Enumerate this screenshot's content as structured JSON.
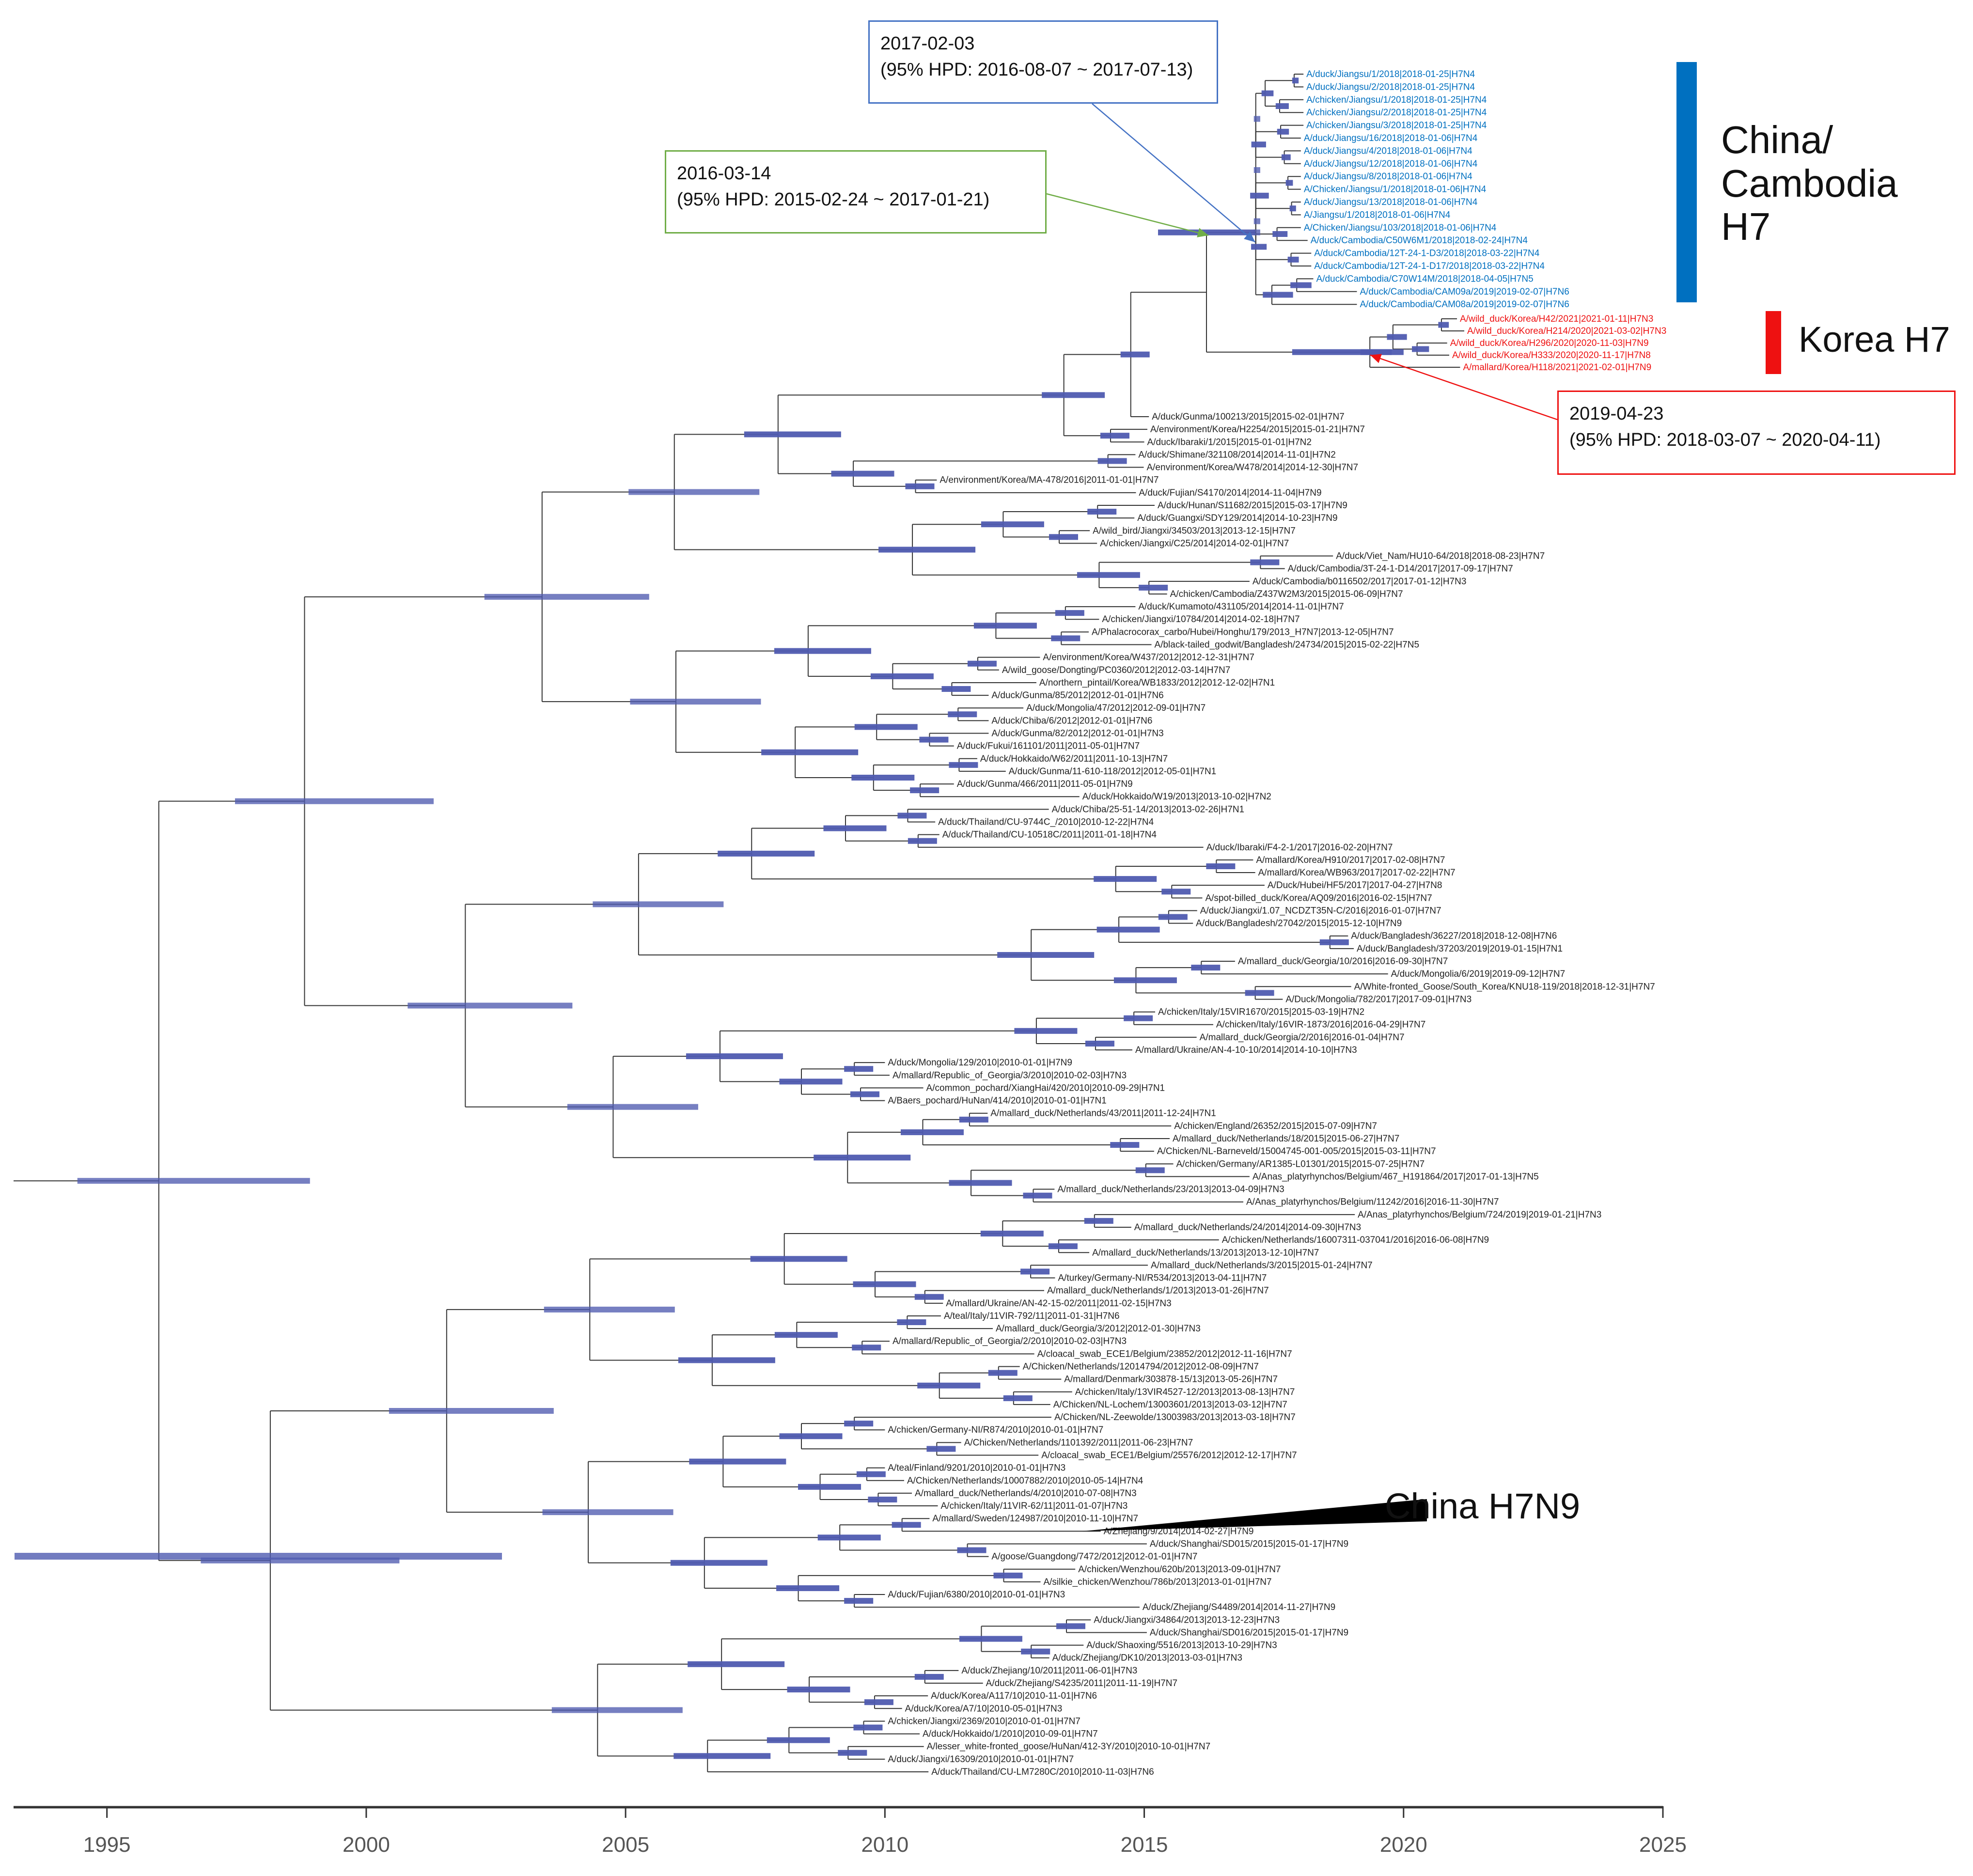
{
  "axis": {
    "ticks": [
      {
        "value": 1995,
        "label": "1995"
      },
      {
        "value": 2000,
        "label": "2000"
      },
      {
        "value": 2005,
        "label": "2005"
      },
      {
        "value": 2010,
        "label": "2010"
      },
      {
        "value": 2015,
        "label": "2015"
      },
      {
        "value": 2020,
        "label": "2020"
      },
      {
        "value": 2025,
        "label": "2025"
      }
    ],
    "range": [
      1993.2,
      2025
    ]
  },
  "colors": {
    "china_cambodia": "#0070C0",
    "korea": "#EE1111",
    "h7n9": "#000000",
    "hpd_bar": "#4F5BB0",
    "branch": "#333333",
    "tip_label": "#222222",
    "callout_blue": "#4472C4",
    "callout_green": "#70AD47",
    "callout_red": "#EE1111"
  },
  "callouts": [
    {
      "id": "blue",
      "date": "2017-02-03",
      "hpd": "(95% HPD: 2016-08-07 ~ 2017-07-13)",
      "node_year": 2017.1
    },
    {
      "id": "green",
      "date": "2016-03-14",
      "hpd": "(95% HPD: 2015-02-24 ~ 2017-01-21)",
      "node_year": 2016.2
    },
    {
      "id": "red",
      "date": "2019-04-23",
      "hpd": "(95% HPD: 2018-03-07 ~ 2020-04-11)",
      "node_year": 2019.3
    }
  ],
  "clade_labels": {
    "china_cambodia": "China/ Cambodia H7",
    "china_cambodia_lines": [
      "China/",
      "Cambodia",
      "H7"
    ],
    "korea": "Korea H7",
    "china_h7n9": "China H7N9"
  },
  "groups": {
    "china_cambodia": [
      {
        "label": "A/duck/Jiangsu/1/2018|2018-01-25|H7N4",
        "year": 2018.07
      },
      {
        "label": "A/duck/Jiangsu/2/2018|2018-01-25|H7N4",
        "year": 2018.07
      },
      {
        "label": "A/chicken/Jiangsu/1/2018|2018-01-25|H7N4",
        "year": 2018.07
      },
      {
        "label": "A/chicken/Jiangsu/2/2018|2018-01-25|H7N4",
        "year": 2018.07
      },
      {
        "label": "A/chicken/Jiangsu/3/2018|2018-01-25|H7N4",
        "year": 2018.07
      },
      {
        "label": "A/duck/Jiangsu/16/2018|2018-01-06|H7N4",
        "year": 2018.02
      },
      {
        "label": "A/duck/Jiangsu/4/2018|2018-01-06|H7N4",
        "year": 2018.02
      },
      {
        "label": "A/duck/Jiangsu/12/2018|2018-01-06|H7N4",
        "year": 2018.02
      },
      {
        "label": "A/duck/Jiangsu/8/2018|2018-01-06|H7N4",
        "year": 2018.02
      },
      {
        "label": "A/Chicken/Jiangsu/1/2018|2018-01-06|H7N4",
        "year": 2018.02
      },
      {
        "label": "A/duck/Jiangsu/13/2018|2018-01-06|H7N4",
        "year": 2018.02
      },
      {
        "label": "A/Jiangsu/1/2018|2018-01-06|H7N4",
        "year": 2018.02
      },
      {
        "label": "A/Chicken/Jiangsu/103/2018|2018-01-06|H7N4",
        "year": 2018.02
      },
      {
        "label": "A/duck/Cambodia/C50W6M1/2018|2018-02-24|H7N4",
        "year": 2018.15
      },
      {
        "label": "A/duck/Cambodia/12T-24-1-D3/2018|2018-03-22|H7N4",
        "year": 2018.22
      },
      {
        "label": "A/duck/Cambodia/12T-24-1-D17/2018|2018-03-22|H7N4",
        "year": 2018.22
      },
      {
        "label": "A/duck/Cambodia/C70W14M/2018|2018-04-05|H7N5",
        "year": 2018.26
      },
      {
        "label": "A/duck/Cambodia/CAM09a/2019|2019-02-07|H7N6",
        "year": 2019.1
      },
      {
        "label": "A/duck/Cambodia/CAM08a/2019|2019-02-07|H7N6",
        "year": 2019.1
      }
    ],
    "korea": [
      {
        "label": "A/wild_duck/Korea/H42/2021|2021-01-11|H7N3",
        "year": 2021.03
      },
      {
        "label": "A/wild_duck/Korea/H214/2020|2021-03-02|H7N3",
        "year": 2021.17
      },
      {
        "label": "A/wild_duck/Korea/H296/2020|2020-11-03|H7N9",
        "year": 2020.84
      },
      {
        "label": "A/wild_duck/Korea/H333/2020|2020-11-17|H7N8",
        "year": 2020.88
      },
      {
        "label": "A/mallard/Korea/H118/2021|2021-02-01|H7N9",
        "year": 2021.09
      }
    ],
    "main": [
      {
        "label": "A/duck/Gunma/100213/2015|2015-02-01|H7N7",
        "year": 2015.09
      },
      {
        "label": "A/environment/Korea/H2254/2015|2015-01-21|H7N7",
        "year": 2015.06
      },
      {
        "label": "A/duck/Ibaraki/1/2015|2015-01-01|H7N2",
        "year": 2015.0
      },
      {
        "label": "A/duck/Shimane/321108/2014|2014-11-01|H7N2",
        "year": 2014.83
      },
      {
        "label": "A/environment/Korea/W478/2014|2014-12-30|H7N7",
        "year": 2014.99
      },
      {
        "label": "A/environment/Korea/MA-478/2016|2011-01-01|H7N7",
        "year": 2011.0
      },
      {
        "label": "A/duck/Fujian/S4170/2014|2014-11-04|H7N9",
        "year": 2014.84
      },
      {
        "label": "A/duck/Hunan/S11682/2015|2015-03-17|H7N9",
        "year": 2015.2
      },
      {
        "label": "A/duck/Guangxi/SDY129/2014|2014-10-23|H7N9",
        "year": 2014.81
      },
      {
        "label": "A/wild_bird/Jiangxi/34503/2013|2013-12-15|H7N7",
        "year": 2013.95
      },
      {
        "label": "A/chicken/Jiangxi/C25/2014|2014-02-01|H7N7",
        "year": 2014.09
      },
      {
        "label": "A/duck/Viet_Nam/HU10-64/2018|2018-08-23|H7N7",
        "year": 2018.64
      },
      {
        "label": "A/duck/Cambodia/3T-24-1-D14/2017|2017-09-17|H7N7",
        "year": 2017.71
      },
      {
        "label": "A/duck/Cambodia/b0116502/2017|2017-01-12|H7N3",
        "year": 2017.03
      },
      {
        "label": "A/chicken/Cambodia/Z437W2M3/2015|2015-06-09|H7N7",
        "year": 2015.44
      },
      {
        "label": "A/duck/Kumamoto/431105/2014|2014-11-01|H7N7",
        "year": 2014.83
      },
      {
        "label": "A/chicken/Jiangxi/10784/2014|2014-02-18|H7N7",
        "year": 2014.13
      },
      {
        "label": "A/Phalacrocorax_carbo/Hubei/Honghu/179/2013_H7N7|2013-12-05|H7N7",
        "year": 2013.93
      },
      {
        "label": "A/black-tailed_godwit/Bangladesh/24734/2015|2015-02-22|H7N5",
        "year": 2015.14
      },
      {
        "label": "A/environment/Korea/W437/2012|2012-12-31|H7N7",
        "year": 2012.99
      },
      {
        "label": "A/wild_goose/Dongting/PC0360/2012|2012-03-14|H7N7",
        "year": 2012.2
      },
      {
        "label": "A/northern_pintail/Korea/WB1833/2012|2012-12-02|H7N1",
        "year": 2012.92
      },
      {
        "label": "A/duck/Gunma/85/2012|2012-01-01|H7N6",
        "year": 2012.0
      },
      {
        "label": "A/duck/Mongolia/47/2012|2012-09-01|H7N7",
        "year": 2012.67
      },
      {
        "label": "A/duck/Chiba/6/2012|2012-01-01|H7N6",
        "year": 2012.0
      },
      {
        "label": "A/duck/Gunma/82/2012|2012-01-01|H7N3",
        "year": 2012.0
      },
      {
        "label": "A/duck/Fukui/161101/2011|2011-05-01|H7N7",
        "year": 2011.33
      },
      {
        "label": "A/duck/Hokkaido/W62/2011|2011-10-13|H7N7",
        "year": 2011.78
      },
      {
        "label": "A/duck/Gunma/11-610-118/2012|2012-05-01|H7N1",
        "year": 2012.33
      },
      {
        "label": "A/duck/Gunma/466/2011|2011-05-01|H7N9",
        "year": 2011.33
      },
      {
        "label": "A/duck/Hokkaido/W19/2013|2013-10-02|H7N2",
        "year": 2013.75
      },
      {
        "label": "A/duck/Chiba/25-51-14/2013|2013-02-26|H7N1",
        "year": 2013.16
      },
      {
        "label": "A/duck/Thailand/CU-9744C_/2010|2010-12-22|H7N4",
        "year": 2010.97
      },
      {
        "label": "A/duck/Thailand/CU-10518C/2011|2011-01-18|H7N4",
        "year": 2011.05
      },
      {
        "label": "A/duck/Ibaraki/F4-2-1/2017|2016-02-20|H7N7",
        "year": 2016.14
      },
      {
        "label": "A/mallard/Korea/H910/2017|2017-02-08|H7N7",
        "year": 2017.1
      },
      {
        "label": "A/mallard/Korea/WB963/2017|2017-02-22|H7N7",
        "year": 2017.14
      },
      {
        "label": "A/Duck/Hubei/HF5/2017|2017-04-27|H7N8",
        "year": 2017.32
      },
      {
        "label": "A/spot-billed_duck/Korea/AQ09/2016|2016-02-15|H7N7",
        "year": 2016.12
      },
      {
        "label": "A/duck/Jiangxi/1.07_NCDZT35N-C/2016|2016-01-07|H7N7",
        "year": 2016.02
      },
      {
        "label": "A/duck/Bangladesh/27042/2015|2015-12-10|H7N9",
        "year": 2015.94
      },
      {
        "label": "A/duck/Bangladesh/36227/2018|2018-12-08|H7N6",
        "year": 2018.93
      },
      {
        "label": "A/duck/Bangladesh/37203/2019|2019-01-15|H7N1",
        "year": 2019.04
      },
      {
        "label": "A/mallard_duck/Georgia/10/2016|2016-09-30|H7N7",
        "year": 2016.75
      },
      {
        "label": "A/duck/Mongolia/6/2019|2019-09-12|H7N7",
        "year": 2019.7
      },
      {
        "label": "A/White-fronted_Goose/South_Korea/KNU18-119/2018|2018-12-31|H7N7",
        "year": 2018.99
      },
      {
        "label": "A/Duck/Mongolia/782/2017|2017-09-01|H7N3",
        "year": 2017.67
      },
      {
        "label": "A/chicken/Italy/15VIR1670/2015|2015-03-19|H7N2",
        "year": 2015.21
      },
      {
        "label": "A/chicken/Italy/16VIR-1873/2016|2016-04-29|H7N7",
        "year": 2016.33
      },
      {
        "label": "A/mallard_duck/Georgia/2/2016|2016-01-04|H7N7",
        "year": 2016.01
      },
      {
        "label": "A/mallard/Ukraine/AN-4-10-10/2014|2014-10-10|H7N3",
        "year": 2014.77
      },
      {
        "label": "A/duck/Mongolia/129/2010|2010-01-01|H7N9",
        "year": 2010.0
      },
      {
        "label": "A/mallard/Republic_of_Georgia/3/2010|2010-02-03|H7N3",
        "year": 2010.09
      },
      {
        "label": "A/common_pochard/XiangHai/420/2010|2010-09-29|H7N1",
        "year": 2010.74
      },
      {
        "label": "A/Baers_pochard/HuNan/414/2010|2010-01-01|H7N1",
        "year": 2010.0
      },
      {
        "label": "A/mallard_duck/Netherlands/43/2011|2011-12-24|H7N1",
        "year": 2011.98
      },
      {
        "label": "A/chicken/England/26352/2015|2015-07-09|H7N7",
        "year": 2015.52
      },
      {
        "label": "A/mallard_duck/Netherlands/18/2015|2015-06-27|H7N7",
        "year": 2015.49
      },
      {
        "label": "A/Chicken/NL-Barneveld/15004745-001-005/2015|2015-03-11|H7N7",
        "year": 2015.19
      },
      {
        "label": "A/chicken/Germany/AR1385-L01301/2015|2015-07-25|H7N7",
        "year": 2015.56
      },
      {
        "label": "A/Anas_platyrhynchos/Belgium/467_H191864/2017|2017-01-13|H7N5",
        "year": 2017.03
      },
      {
        "label": "A/mallard_duck/Netherlands/23/2013|2013-04-09|H7N3",
        "year": 2013.27
      },
      {
        "label": "A/Anas_platyrhynchos/Belgium/11242/2016|2016-11-30|H7N7",
        "year": 2016.91
      },
      {
        "label": "A/Anas_platyrhynchos/Belgium/724/2019|2019-01-21|H7N3",
        "year": 2019.06
      },
      {
        "label": "A/mallard_duck/Netherlands/24/2014|2014-09-30|H7N3",
        "year": 2014.75
      },
      {
        "label": "A/chicken/Netherlands/16007311-037041/2016|2016-06-08|H7N9",
        "year": 2016.44
      },
      {
        "label": "A/mallard_duck/Netherlands/13/2013|2013-12-10|H7N7",
        "year": 2013.94
      },
      {
        "label": "A/mallard_duck/Netherlands/3/2015|2015-01-24|H7N7",
        "year": 2015.07
      },
      {
        "label": "A/turkey/Germany-NI/R534/2013|2013-04-11|H7N7",
        "year": 2013.28
      },
      {
        "label": "A/mallard_duck/Netherlands/1/2013|2013-01-26|H7N7",
        "year": 2013.07
      },
      {
        "label": "A/mallard/Ukraine/AN-42-15-02/2011|2011-02-15|H7N3",
        "year": 2011.12
      },
      {
        "label": "A/teal/Italy/11VIR-792/11|2011-01-31|H7N6",
        "year": 2011.08
      },
      {
        "label": "A/mallard_duck/Georgia/3/2012|2012-01-30|H7N3",
        "year": 2012.08
      },
      {
        "label": "A/mallard/Republic_of_Georgia/2/2010|2010-02-03|H7N3",
        "year": 2010.09
      },
      {
        "label": "A/cloacal_swab_ECE1/Belgium/23852/2012|2012-11-16|H7N7",
        "year": 2012.88
      },
      {
        "label": "A/Chicken/Netherlands/12014794/2012|2012-08-09|H7N7",
        "year": 2012.6
      },
      {
        "label": "A/mallard/Denmark/303878-15/13|2013-05-26|H7N7",
        "year": 2013.4
      },
      {
        "label": "A/chicken/Italy/13VIR4527-12/2013|2013-08-13|H7N7",
        "year": 2013.61
      },
      {
        "label": "A/Chicken/NL-Lochem/13003601/2013|2013-03-12|H7N7",
        "year": 2013.19
      },
      {
        "label": "A/Chicken/NL-Zeewolde/13003983/2013|2013-03-18|H7N7",
        "year": 2013.21
      },
      {
        "label": "A/chicken/Germany-NI/R874/2010|2010-01-01|H7N7",
        "year": 2010.0
      },
      {
        "label": "A/Chicken/Netherlands/1101392/2011|2011-06-23|H7N7",
        "year": 2011.47
      },
      {
        "label": "A/cloacal_swab_ECE1/Belgium/25576/2012|2012-12-17|H7N7",
        "year": 2012.96
      },
      {
        "label": "A/teal/Finland/9201/2010|2010-01-01|H7N3",
        "year": 2010.0
      },
      {
        "label": "A/Chicken/Netherlands/10007882/2010|2010-05-14|H7N4",
        "year": 2010.37
      },
      {
        "label": "A/mallard_duck/Netherlands/4/2010|2010-07-08|H7N3",
        "year": 2010.52
      },
      {
        "label": "A/chicken/Italy/11VIR-62/11|2011-01-07|H7N3",
        "year": 2011.02
      },
      {
        "label": "A/mallard/Sweden/124987/2010|2010-11-10|H7N7",
        "year": 2010.86
      },
      {
        "label": "A/Zhejiang/9/2014|2014-02-27|H7N9",
        "year": 2014.16
      },
      {
        "label": "A/duck/Shanghai/SD015/2015|2015-01-17|H7N9",
        "year": 2015.05
      },
      {
        "label": "A/goose/Guangdong/7472/2012|2012-01-01|H7N7",
        "year": 2012.0
      },
      {
        "label": "A/chicken/Wenzhou/620b/2013|2013-09-01|H7N7",
        "year": 2013.67
      },
      {
        "label": "A/silkie_chicken/Wenzhou/786b/2013|2013-01-01|H7N7",
        "year": 2013.0
      },
      {
        "label": "A/duck/Fujian/6380/2010|2010-01-01|H7N3",
        "year": 2010.0
      },
      {
        "label": "A/duck/Zhejiang/S4489/2014|2014-11-27|H7N9",
        "year": 2014.91
      },
      {
        "label": "A/duck/Jiangxi/34864/2013|2013-12-23|H7N3",
        "year": 2013.97
      },
      {
        "label": "A/duck/Shanghai/SD016/2015|2015-01-17|H7N9",
        "year": 2015.05
      },
      {
        "label": "A/duck/Shaoxing/5516/2013|2013-10-29|H7N3",
        "year": 2013.83
      },
      {
        "label": "A/duck/Zhejiang/DK10/2013|2013-03-01|H7N3",
        "year": 2013.17
      },
      {
        "label": "A/duck/Zhejiang/10/2011|2011-06-01|H7N3",
        "year": 2011.42
      },
      {
        "label": "A/duck/Zhejiang/S4235/2011|2011-11-19|H7N7",
        "year": 2011.89
      },
      {
        "label": "A/duck/Korea/A117/10|2010-11-01|H7N6",
        "year": 2010.83
      },
      {
        "label": "A/duck/Korea/A7/10|2010-05-01|H7N3",
        "year": 2010.33
      },
      {
        "label": "A/chicken/Jiangxi/2369/2010|2010-01-01|H7N7",
        "year": 2010.0
      },
      {
        "label": "A/duck/Hokkaido/1/2010|2010-09-01|H7N7",
        "year": 2010.67
      },
      {
        "label": "A/lesser_white-fronted_goose/HuNan/412-3Y/2010|2010-10-01|H7N7",
        "year": 2010.75
      },
      {
        "label": "A/duck/Jiangxi/16309/2010|2010-01-01|H7N7",
        "year": 2010.0
      },
      {
        "label": "A/duck/Thailand/CU-LM7280C/2010|2010-11-03|H7N6",
        "year": 2010.84
      }
    ]
  }
}
